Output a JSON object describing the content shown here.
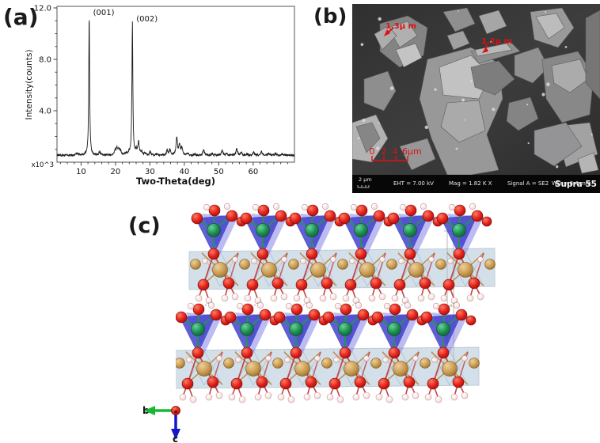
{
  "panels": {
    "a": {
      "label": "(a)"
    },
    "b": {
      "label": "(b)"
    },
    "c": {
      "label": "(c)"
    }
  },
  "chart_data": {
    "type": "line",
    "title": "",
    "xlabel": "Two-Theta(deg)",
    "ylabel": "Intensity(counts)",
    "y_unit_note": "x10^3",
    "xlim": [
      3,
      72
    ],
    "ylim": [
      0,
      12000
    ],
    "x_ticks": [
      10,
      20,
      30,
      40,
      50,
      60
    ],
    "y_ticks": [
      4.0,
      8.0,
      12.0
    ],
    "grid": false,
    "legend": "none",
    "baseline": 550,
    "peak_labels": [
      {
        "text": "(001)",
        "two_theta": 12.35
      },
      {
        "text": "(002)",
        "two_theta": 24.9
      }
    ],
    "peaks": [
      {
        "two_theta": 8.8,
        "intensity": 730
      },
      {
        "two_theta": 12.35,
        "intensity": 11500
      },
      {
        "two_theta": 15.4,
        "intensity": 830
      },
      {
        "two_theta": 19.9,
        "intensity": 950
      },
      {
        "two_theta": 20.4,
        "intensity": 1000
      },
      {
        "two_theta": 20.9,
        "intensity": 980
      },
      {
        "two_theta": 21.4,
        "intensity": 900
      },
      {
        "two_theta": 23.0,
        "intensity": 700
      },
      {
        "two_theta": 23.9,
        "intensity": 720
      },
      {
        "two_theta": 24.9,
        "intensity": 11000
      },
      {
        "two_theta": 26.0,
        "intensity": 900
      },
      {
        "two_theta": 26.7,
        "intensity": 1550
      },
      {
        "two_theta": 27.6,
        "intensity": 780
      },
      {
        "two_theta": 28.6,
        "intensity": 700
      },
      {
        "two_theta": 30.1,
        "intensity": 830
      },
      {
        "two_theta": 32.1,
        "intensity": 650
      },
      {
        "two_theta": 35.0,
        "intensity": 930
      },
      {
        "two_theta": 35.8,
        "intensity": 980
      },
      {
        "two_theta": 37.8,
        "intensity": 1900
      },
      {
        "two_theta": 38.6,
        "intensity": 1300
      },
      {
        "two_theta": 39.3,
        "intensity": 1150
      },
      {
        "two_theta": 41.0,
        "intensity": 700
      },
      {
        "two_theta": 43.0,
        "intensity": 640
      },
      {
        "two_theta": 45.6,
        "intensity": 930
      },
      {
        "two_theta": 48.1,
        "intensity": 650
      },
      {
        "two_theta": 51.0,
        "intensity": 990
      },
      {
        "two_theta": 52.3,
        "intensity": 680
      },
      {
        "two_theta": 55.2,
        "intensity": 1030
      },
      {
        "two_theta": 56.6,
        "intensity": 800
      },
      {
        "two_theta": 58.3,
        "intensity": 660
      },
      {
        "two_theta": 60.1,
        "intensity": 760
      },
      {
        "two_theta": 62.4,
        "intensity": 840
      },
      {
        "two_theta": 64.5,
        "intensity": 680
      },
      {
        "two_theta": 66.5,
        "intensity": 700
      },
      {
        "two_theta": 68.5,
        "intensity": 680
      }
    ]
  },
  "sem": {
    "annotation_color": "#e01010",
    "annotations": {
      "measure1": "1.3μ m",
      "measure2": "1.2μ m",
      "ruler_labels": [
        "0",
        "2",
        "4",
        "6μm"
      ]
    },
    "status_bar": {
      "scale_label": "2 μm",
      "eht": "EHT =  7.00 kV",
      "mag": "Mag =   1.82 K X",
      "signal": "Signal A = SE2",
      "wd": "WD =  8.4 mm",
      "instrument": "Supra 55"
    }
  },
  "crystal": {
    "axis_labels": {
      "a": "a",
      "b": "b",
      "c": "c"
    },
    "axis_colors": {
      "a": "#cc1111",
      "b": "#16b832",
      "c": "#1515cc"
    },
    "atom_colors": {
      "oxygen": "#d81414",
      "hydrogen": "#f7ebea",
      "metal_octahedral": "#c99b52",
      "metal_tetrahedral": "#1d8a4e",
      "tetrahedra": "#3c3ccc",
      "tetrahedra_back": "#8585e8",
      "octahedra_slab": "#a9c2d6",
      "bond_red": "#c03030",
      "bond_tan": "#c08030",
      "bond_green": "#2a9055"
    },
    "slab_count": 2,
    "units_per_slab": 6
  }
}
